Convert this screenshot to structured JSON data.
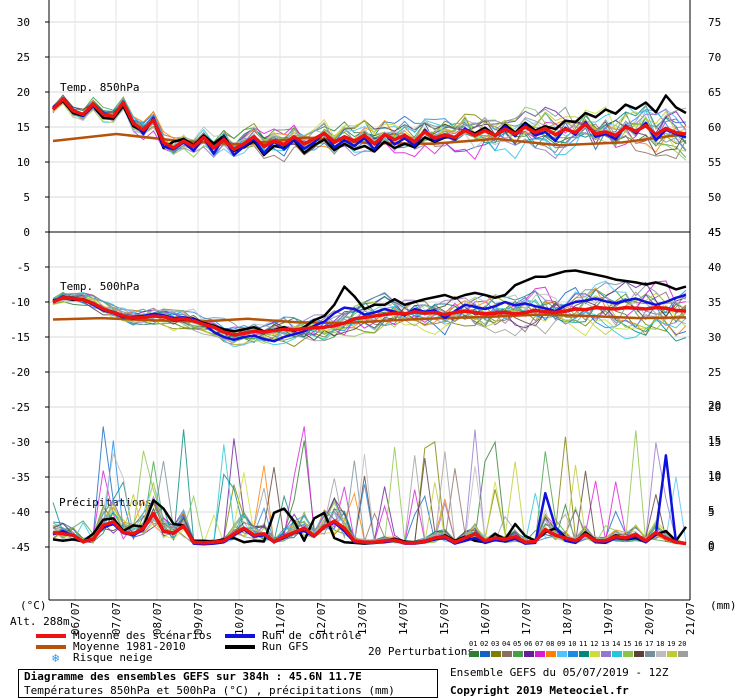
{
  "chart_data": {
    "type": "line",
    "title": "Diagramme des ensembles GEFS sur 384h : 45.6N 11.7E",
    "subtitle": "Températures 850hPa et 500hPa (°C) , précipitations (mm)",
    "x_ticks": [
      "06/07",
      "07/07",
      "08/07",
      "09/07",
      "10/07",
      "11/07",
      "12/07",
      "13/07",
      "14/07",
      "15/07",
      "16/07",
      "17/07",
      "18/07",
      "19/07",
      "20/07",
      "21/07"
    ],
    "panels": [
      {
        "name": "Temp. 850hPa",
        "left_axis": {
          "label": "(°C)",
          "ticks": [
            30,
            25,
            20,
            15,
            10,
            5,
            0
          ],
          "range": [
            0,
            30
          ]
        },
        "right_axis": {
          "ticks": [
            75,
            70,
            65,
            60,
            55,
            50,
            45
          ]
        },
        "series": [
          {
            "name": "Moyenne des scénarios",
            "color": "#ee1111",
            "role": "mean",
            "values": [
              17.5,
              19.0,
              17.3,
              16.8,
              18.3,
              16.8,
              16.5,
              18.5,
              15.5,
              14.6,
              16.0,
              12.8,
              12.0,
              13.0,
              12.2,
              13.5,
              12.0,
              13.2,
              11.8,
              12.6,
              13.6,
              12.2,
              13.0,
              12.5,
              13.6,
              12.6,
              13.3,
              14.1,
              12.8,
              13.6,
              13.0,
              13.8,
              12.6,
              13.9,
              13.2,
              13.8,
              12.9,
              14.3,
              13.4,
              13.9,
              13.5,
              14.5,
              13.8,
              14.5,
              13.8,
              14.7,
              14.0,
              15.0,
              14.2,
              14.8,
              13.9,
              14.7,
              14.2,
              15.4,
              14.0,
              14.3,
              13.8,
              15.0,
              14.4,
              15.2,
              13.9,
              14.8,
              14.2,
              14.0
            ]
          },
          {
            "name": "Moyenne 1981-2010",
            "color": "#b45309",
            "role": "climo",
            "values": [
              13.0,
              14.0,
              13.0,
              12.5,
              13.5,
              12.7,
              12.6,
              13.3,
              12.4,
              12.8,
              14.0
            ]
          },
          {
            "name": "Run de contrôle",
            "color": "#1111dd",
            "role": "control",
            "values": [
              17.8,
              18.9,
              17.5,
              16.6,
              18.0,
              17.0,
              16.4,
              18.6,
              15.7,
              14.0,
              16.3,
              12.2,
              11.8,
              12.8,
              11.6,
              13.5,
              11.2,
              13.5,
              11.0,
              12.2,
              13.3,
              11.2,
              12.9,
              11.8,
              13.2,
              11.9,
              12.8,
              14.2,
              12.1,
              13.1,
              12.3,
              13.4,
              11.8,
              14.0,
              12.5,
              13.4,
              12.3,
              14.6,
              13.0,
              13.7,
              13.2,
              14.8,
              13.8,
              14.6,
              13.7,
              15.1,
              13.7,
              15.3,
              13.8,
              14.3,
              13.0,
              14.9,
              13.9,
              15.7,
              13.6,
              14.0,
              13.3,
              15.2,
              14.1,
              15.6,
              13.1,
              14.6,
              14.0,
              13.5
            ]
          },
          {
            "name": "Run GFS",
            "color": "#000000",
            "role": "gfs",
            "values": [
              17.6,
              18.7,
              17.0,
              16.6,
              18.0,
              16.3,
              16.2,
              18.0,
              15.1,
              14.4,
              16.0,
              12.0,
              12.9,
              13.3,
              12.4,
              13.8,
              12.6,
              13.7,
              11.6,
              12.1,
              13.0,
              11.0,
              12.3,
              12.0,
              13.1,
              11.3,
              12.4,
              13.2,
              11.7,
              12.6,
              11.8,
              12.3,
              11.5,
              12.9,
              12.0,
              12.6,
              12.1,
              13.5,
              12.9,
              13.5,
              13.6,
              14.6,
              14.1,
              14.9,
              13.8,
              15.3,
              14.2,
              15.6,
              14.5,
              15.1,
              14.7,
              15.9,
              15.7,
              17.0,
              16.4,
              17.5,
              16.9,
              18.2,
              17.6,
              18.5,
              17.1,
              19.5,
              17.8,
              17.0
            ]
          }
        ]
      },
      {
        "name": "Temp. 500hPa",
        "left_axis": {
          "ticks": [
            -5,
            -10,
            -15,
            -20,
            -25,
            -30,
            -35,
            -40,
            -45
          ],
          "range": [
            -45,
            0
          ]
        },
        "right_axis": {
          "ticks": [
            45,
            40,
            35,
            30,
            25,
            20,
            15,
            10,
            5,
            0
          ]
        },
        "series": [
          {
            "name": "Moyenne des scénarios",
            "color": "#ee1111",
            "role": "mean",
            "values": [
              -10.0,
              -9.4,
              -9.5,
              -9.7,
              -10.2,
              -11.0,
              -11.5,
              -12.0,
              -12.3,
              -12.2,
              -12.0,
              -12.1,
              -12.5,
              -12.4,
              -12.7,
              -13.2,
              -13.6,
              -14.3,
              -14.7,
              -14.5,
              -14.2,
              -14.3,
              -14.1,
              -13.9,
              -14.0,
              -13.8,
              -13.7,
              -13.6,
              -13.4,
              -13.0,
              -12.4,
              -12.2,
              -12.0,
              -11.8,
              -11.6,
              -11.7,
              -11.4,
              -11.6,
              -11.5,
              -11.8,
              -11.5,
              -11.3,
              -11.5,
              -11.7,
              -11.6,
              -11.5,
              -11.7,
              -11.5,
              -11.2,
              -11.4,
              -11.5,
              -11.3,
              -11.0,
              -11.1,
              -10.8,
              -10.9,
              -11.0,
              -10.8,
              -10.9,
              -11.0,
              -10.8,
              -10.9,
              -11.2,
              -11.3
            ]
          },
          {
            "name": "Moyenne 1981-2010",
            "color": "#b45309",
            "role": "climo",
            "values": [
              -12.5,
              -12.3,
              -12.6,
              -12.8,
              -12.4,
              -12.9,
              -13.0,
              -12.6,
              -12.3,
              -12.1,
              -11.8,
              -12.0,
              -12.3,
              -12.2
            ]
          },
          {
            "name": "Run de contrôle",
            "color": "#1111dd",
            "role": "control",
            "values": [
              -10.0,
              -9.2,
              -9.6,
              -9.7,
              -10.4,
              -11.2,
              -11.6,
              -12.2,
              -12.1,
              -12.0,
              -11.7,
              -11.9,
              -12.3,
              -12.2,
              -12.5,
              -13.1,
              -14.3,
              -15.0,
              -15.4,
              -15.0,
              -14.8,
              -15.3,
              -15.6,
              -15.0,
              -14.6,
              -14.2,
              -13.4,
              -12.8,
              -11.6,
              -10.8,
              -11.0,
              -11.8,
              -11.5,
              -11.0,
              -11.4,
              -11.9,
              -11.0,
              -11.4,
              -11.2,
              -12.3,
              -11.3,
              -10.4,
              -10.7,
              -11.0,
              -10.6,
              -10.0,
              -10.5,
              -10.2,
              -10.6,
              -10.9,
              -11.3,
              -10.5,
              -10.0,
              -9.8,
              -9.5,
              -9.9,
              -10.2,
              -9.8,
              -9.5,
              -10.0,
              -10.4,
              -10.0,
              -9.4,
              -9.0
            ]
          },
          {
            "name": "Run GFS",
            "color": "#000000",
            "role": "gfs",
            "values": [
              -9.8,
              -9.4,
              -9.7,
              -9.6,
              -10.2,
              -11.1,
              -11.4,
              -12.0,
              -12.4,
              -12.0,
              -11.9,
              -12.0,
              -12.6,
              -12.5,
              -12.4,
              -13.0,
              -13.4,
              -13.9,
              -14.2,
              -13.9,
              -13.6,
              -14.2,
              -14.0,
              -13.6,
              -14.2,
              -13.6,
              -12.6,
              -12.0,
              -10.4,
              -7.8,
              -9.2,
              -11.0,
              -10.4,
              -10.4,
              -9.6,
              -10.4,
              -10.0,
              -9.6,
              -9.3,
              -9.0,
              -9.5,
              -9.0,
              -8.7,
              -9.0,
              -9.4,
              -9.0,
              -7.6,
              -7.0,
              -6.4,
              -6.4,
              -6.0,
              -5.6,
              -5.5,
              -5.8,
              -6.1,
              -6.4,
              -6.8,
              -7.0,
              -7.2,
              -7.5,
              -7.2,
              -7.6,
              -8.2,
              -7.8
            ]
          }
        ]
      },
      {
        "name": "Précipitations",
        "right_axis": {
          "label": "(mm)",
          "ticks": [
            20,
            15,
            10,
            5,
            0
          ],
          "range": [
            0,
            20
          ]
        },
        "series": [
          {
            "name": "Moyenne des scénarios",
            "color": "#ee1111",
            "role": "mean",
            "values": [
              1.8,
              1.6,
              1.4,
              0.5,
              0.8,
              2.8,
              3.3,
              1.8,
              1.6,
              2.4,
              4.5,
              2.0,
              1.7,
              2.7,
              0.4,
              0.3,
              0.4,
              0.6,
              1.6,
              2.4,
              1.4,
              1.6,
              0.5,
              1.2,
              1.8,
              2.4,
              1.3,
              2.6,
              3.4,
              2.4,
              0.6,
              0.4,
              0.4,
              0.6,
              0.7,
              0.3,
              0.3,
              0.5,
              1.0,
              1.2,
              0.4,
              1.0,
              1.6,
              0.6,
              1.0,
              0.8,
              1.2,
              0.4,
              0.5,
              2.2,
              1.4,
              1.0,
              0.6,
              1.5,
              0.6,
              0.6,
              1.2,
              1.0,
              1.5,
              0.6,
              1.8,
              1.0,
              0.4,
              0.2
            ]
          },
          {
            "name": "Run de contrôle",
            "color": "#1111dd",
            "role": "control",
            "values": [
              1.5,
              2.0,
              1.3,
              0.5,
              0.9,
              2.5,
              3.0,
              1.7,
              1.4,
              2.2,
              4.4,
              1.9,
              1.6,
              2.7,
              0.2,
              0.1,
              0.2,
              0.4,
              1.4,
              2.2,
              1.2,
              1.4,
              0.4,
              1.0,
              1.7,
              2.0,
              1.2,
              2.5,
              3.2,
              2.0,
              0.4,
              0.3,
              0.3,
              0.4,
              0.6,
              0.2,
              0.2,
              0.4,
              0.8,
              1.0,
              0.2,
              0.6,
              1.0,
              0.3,
              0.7,
              0.5,
              0.9,
              0.2,
              0.3,
              7.4,
              2.6,
              0.6,
              0.3,
              1.5,
              0.4,
              0.3,
              1.0,
              0.8,
              1.2,
              0.4,
              1.6,
              12.8,
              0.4,
              0.2
            ]
          },
          {
            "name": "Run GFS",
            "color": "#000000",
            "role": "gfs",
            "values": [
              0.8,
              0.6,
              0.8,
              0.5,
              1.6,
              3.6,
              3.8,
              2.0,
              2.8,
              2.6,
              6.4,
              5.2,
              3.0,
              2.8,
              0.6,
              0.6,
              0.5,
              0.8,
              1.0,
              0.4,
              0.6,
              0.5,
              4.6,
              5.2,
              3.4,
              0.6,
              3.8,
              4.6,
              1.0,
              0.4,
              0.3,
              0.2,
              0.3,
              0.6,
              0.9,
              0.5,
              0.4,
              0.6,
              0.8,
              1.4,
              0.6,
              1.2,
              0.6,
              0.4,
              1.6,
              0.8,
              3.0,
              1.3,
              0.6,
              1.8,
              2.4,
              1.1,
              0.5,
              1.8,
              0.7,
              0.6,
              1.4,
              0.8,
              1.0,
              0.4,
              1.5,
              2.0,
              0.6,
              2.6
            ]
          }
        ]
      }
    ]
  },
  "labels": {
    "panel1": "Temp. 850hPa",
    "panel2": "Temp. 500hPa",
    "panel3": "Précipitations",
    "left_unit": "(°C)",
    "right_unit": "(mm)",
    "alt": "Alt. 288m",
    "perturbations": "20 Perturbations",
    "ensemble_run": "Ensemble GEFS du 05/07/2019 - 12Z",
    "copyright": "Copyright 2019 Meteociel.fr"
  },
  "legend": {
    "mean": "Moyenne des scénarios",
    "climo": "Moyenne 1981-2010",
    "snow": "Risque neige",
    "control": "Run de contrôle",
    "gfs": "Run GFS"
  },
  "perturbation_palette": {
    "numbers": [
      "01",
      "02",
      "03",
      "04",
      "05",
      "06",
      "07",
      "08",
      "09",
      "10",
      "11",
      "12",
      "13",
      "14",
      "15",
      "16",
      "17",
      "18",
      "19",
      "20"
    ],
    "colors": [
      "#2e7d32",
      "#1565c0",
      "#7e7e00",
      "#8d6e63",
      "#43a047",
      "#6a1b9a",
      "#d81bd8",
      "#ff7f00",
      "#4fc3f7",
      "#1e88e5",
      "#00897b",
      "#cddc39",
      "#9575cd",
      "#26c6da",
      "#8bc34a",
      "#5d4037",
      "#78909c",
      "#bdbdbd",
      "#c0ca33",
      "#9e9e9e"
    ]
  }
}
